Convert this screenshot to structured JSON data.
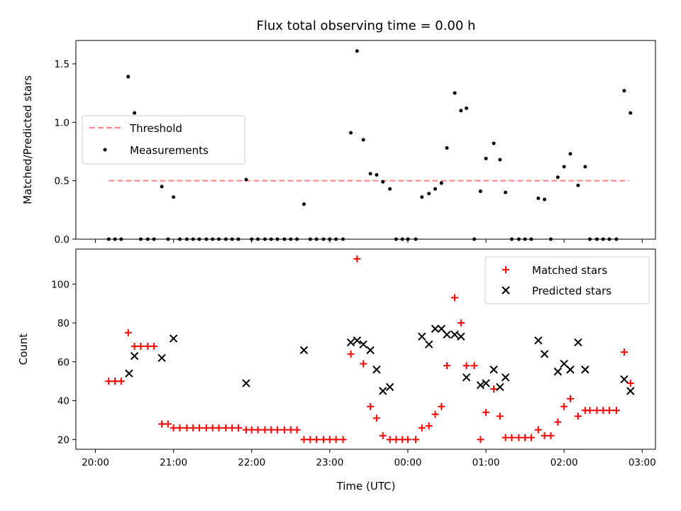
{
  "figure": {
    "title": "Flux total observing time = 0.00 h",
    "xlabel": "Time (UTC)",
    "x_tick_labels": [
      "20:00",
      "21:00",
      "22:00",
      "23:00",
      "00:00",
      "01:00",
      "02:00",
      "03:00"
    ]
  },
  "chart_data": [
    {
      "type": "scatter",
      "panel": "top",
      "ylabel": "Matched/Predicted stars",
      "ylim": [
        0,
        1.7
      ],
      "yticks": [
        0.0,
        0.5,
        1.0,
        1.5
      ],
      "y_tick_labels": [
        "0.0",
        "0.5",
        "1.0",
        "1.5"
      ],
      "x_unit": "hours after 20:00 UTC",
      "xlim": [
        -0.25,
        7.17
      ],
      "legend_placement": "center-left",
      "threshold": {
        "name": "Threshold",
        "value": 0.5,
        "x_range": [
          0.17,
          6.83
        ],
        "color": "#ff8080"
      },
      "measurements": {
        "name": "Measurements",
        "color": "#000000",
        "points": [
          [
            0.17,
            0.0
          ],
          [
            0.25,
            0.0
          ],
          [
            0.33,
            0.0
          ],
          [
            0.42,
            1.39
          ],
          [
            0.5,
            1.08
          ],
          [
            0.58,
            0.0
          ],
          [
            0.67,
            0.0
          ],
          [
            0.75,
            0.0
          ],
          [
            0.85,
            0.45
          ],
          [
            0.93,
            0.0
          ],
          [
            1.0,
            0.36
          ],
          [
            1.08,
            0.0
          ],
          [
            1.17,
            0.0
          ],
          [
            1.25,
            0.0
          ],
          [
            1.33,
            0.0
          ],
          [
            1.42,
            0.0
          ],
          [
            1.5,
            0.0
          ],
          [
            1.58,
            0.0
          ],
          [
            1.67,
            0.0
          ],
          [
            1.75,
            0.0
          ],
          [
            1.83,
            0.0
          ],
          [
            1.93,
            0.51
          ],
          [
            2.0,
            0.0
          ],
          [
            2.08,
            0.0
          ],
          [
            2.17,
            0.0
          ],
          [
            2.25,
            0.0
          ],
          [
            2.33,
            0.0
          ],
          [
            2.42,
            0.0
          ],
          [
            2.5,
            0.0
          ],
          [
            2.58,
            0.0
          ],
          [
            2.67,
            0.3
          ],
          [
            2.75,
            0.0
          ],
          [
            2.83,
            0.0
          ],
          [
            2.92,
            0.0
          ],
          [
            3.0,
            0.0
          ],
          [
            3.08,
            0.0
          ],
          [
            3.17,
            0.0
          ],
          [
            3.27,
            0.91
          ],
          [
            3.35,
            1.61
          ],
          [
            3.43,
            0.85
          ],
          [
            3.52,
            0.56
          ],
          [
            3.6,
            0.55
          ],
          [
            3.68,
            0.49
          ],
          [
            3.77,
            0.43
          ],
          [
            3.85,
            0.0
          ],
          [
            3.93,
            0.0
          ],
          [
            4.0,
            0.0
          ],
          [
            4.1,
            0.0
          ],
          [
            4.18,
            0.36
          ],
          [
            4.27,
            0.39
          ],
          [
            4.35,
            0.43
          ],
          [
            4.43,
            0.48
          ],
          [
            4.5,
            0.78
          ],
          [
            4.6,
            1.25
          ],
          [
            4.68,
            1.1
          ],
          [
            4.75,
            1.12
          ],
          [
            4.85,
            0.0
          ],
          [
            4.93,
            0.41
          ],
          [
            5.0,
            0.69
          ],
          [
            5.1,
            0.82
          ],
          [
            5.18,
            0.68
          ],
          [
            5.25,
            0.4
          ],
          [
            5.33,
            0.0
          ],
          [
            5.42,
            0.0
          ],
          [
            5.5,
            0.0
          ],
          [
            5.58,
            0.0
          ],
          [
            5.67,
            0.35
          ],
          [
            5.75,
            0.34
          ],
          [
            5.83,
            0.0
          ],
          [
            5.92,
            0.53
          ],
          [
            6.0,
            0.62
          ],
          [
            6.08,
            0.73
          ],
          [
            6.18,
            0.46
          ],
          [
            6.27,
            0.62
          ],
          [
            6.33,
            0.0
          ],
          [
            6.42,
            0.0
          ],
          [
            6.5,
            0.0
          ],
          [
            6.58,
            0.0
          ],
          [
            6.67,
            0.0
          ],
          [
            6.77,
            1.27
          ],
          [
            6.85,
            1.08
          ]
        ]
      }
    },
    {
      "type": "scatter",
      "panel": "bottom",
      "ylabel": "Count",
      "ylim": [
        15,
        118
      ],
      "yticks": [
        20,
        40,
        60,
        80,
        100
      ],
      "y_tick_labels": [
        "20",
        "40",
        "60",
        "80",
        "100"
      ],
      "x_unit": "hours after 20:00 UTC",
      "xlim": [
        -0.25,
        7.17
      ],
      "legend_placement": "top-right",
      "series": [
        {
          "name": "Matched stars",
          "marker": "plus",
          "color": "#ff0000",
          "points": [
            [
              0.17,
              50
            ],
            [
              0.25,
              50
            ],
            [
              0.33,
              50
            ],
            [
              0.42,
              75
            ],
            [
              0.5,
              68
            ],
            [
              0.58,
              68
            ],
            [
              0.67,
              68
            ],
            [
              0.75,
              68
            ],
            [
              0.85,
              28
            ],
            [
              0.93,
              28
            ],
            [
              1.0,
              26
            ],
            [
              1.08,
              26
            ],
            [
              1.17,
              26
            ],
            [
              1.25,
              26
            ],
            [
              1.33,
              26
            ],
            [
              1.42,
              26
            ],
            [
              1.5,
              26
            ],
            [
              1.58,
              26
            ],
            [
              1.67,
              26
            ],
            [
              1.75,
              26
            ],
            [
              1.83,
              26
            ],
            [
              1.93,
              25
            ],
            [
              2.0,
              25
            ],
            [
              2.08,
              25
            ],
            [
              2.17,
              25
            ],
            [
              2.25,
              25
            ],
            [
              2.33,
              25
            ],
            [
              2.42,
              25
            ],
            [
              2.5,
              25
            ],
            [
              2.58,
              25
            ],
            [
              2.67,
              20
            ],
            [
              2.75,
              20
            ],
            [
              2.83,
              20
            ],
            [
              2.92,
              20
            ],
            [
              3.0,
              20
            ],
            [
              3.08,
              20
            ],
            [
              3.17,
              20
            ],
            [
              3.27,
              64
            ],
            [
              3.35,
              113
            ],
            [
              3.43,
              59
            ],
            [
              3.52,
              37
            ],
            [
              3.6,
              31
            ],
            [
              3.68,
              22
            ],
            [
              3.77,
              20
            ],
            [
              3.85,
              20
            ],
            [
              3.93,
              20
            ],
            [
              4.0,
              20
            ],
            [
              4.1,
              20
            ],
            [
              4.18,
              26
            ],
            [
              4.27,
              27
            ],
            [
              4.35,
              33
            ],
            [
              4.43,
              37
            ],
            [
              4.5,
              58
            ],
            [
              4.6,
              93
            ],
            [
              4.68,
              80
            ],
            [
              4.75,
              58
            ],
            [
              4.85,
              58
            ],
            [
              4.93,
              20
            ],
            [
              5.0,
              34
            ],
            [
              5.1,
              46
            ],
            [
              5.18,
              32
            ],
            [
              5.25,
              21
            ],
            [
              5.33,
              21
            ],
            [
              5.42,
              21
            ],
            [
              5.5,
              21
            ],
            [
              5.58,
              21
            ],
            [
              5.67,
              25
            ],
            [
              5.75,
              22
            ],
            [
              5.83,
              22
            ],
            [
              5.92,
              29
            ],
            [
              6.0,
              37
            ],
            [
              6.08,
              41
            ],
            [
              6.18,
              32
            ],
            [
              6.27,
              35
            ],
            [
              6.33,
              35
            ],
            [
              6.42,
              35
            ],
            [
              6.5,
              35
            ],
            [
              6.58,
              35
            ],
            [
              6.67,
              35
            ],
            [
              6.77,
              65
            ],
            [
              6.85,
              49
            ]
          ]
        },
        {
          "name": "Predicted stars",
          "marker": "x",
          "color": "#000000",
          "points": [
            [
              0.43,
              54
            ],
            [
              0.5,
              63
            ],
            [
              0.85,
              62
            ],
            [
              1.0,
              72
            ],
            [
              1.93,
              49
            ],
            [
              2.67,
              66
            ],
            [
              3.27,
              70
            ],
            [
              3.35,
              71
            ],
            [
              3.43,
              69
            ],
            [
              3.52,
              66
            ],
            [
              3.6,
              56
            ],
            [
              3.68,
              45
            ],
            [
              3.77,
              47
            ],
            [
              4.18,
              73
            ],
            [
              4.27,
              69
            ],
            [
              4.35,
              77
            ],
            [
              4.43,
              77
            ],
            [
              4.5,
              74
            ],
            [
              4.6,
              74
            ],
            [
              4.68,
              73
            ],
            [
              4.75,
              52
            ],
            [
              4.93,
              48
            ],
            [
              5.0,
              49
            ],
            [
              5.1,
              56
            ],
            [
              5.18,
              47
            ],
            [
              5.25,
              52
            ],
            [
              5.67,
              71
            ],
            [
              5.75,
              64
            ],
            [
              5.92,
              55
            ],
            [
              6.0,
              59
            ],
            [
              6.08,
              56
            ],
            [
              6.18,
              70
            ],
            [
              6.27,
              56
            ],
            [
              6.77,
              51
            ],
            [
              6.85,
              45
            ]
          ]
        }
      ]
    }
  ]
}
